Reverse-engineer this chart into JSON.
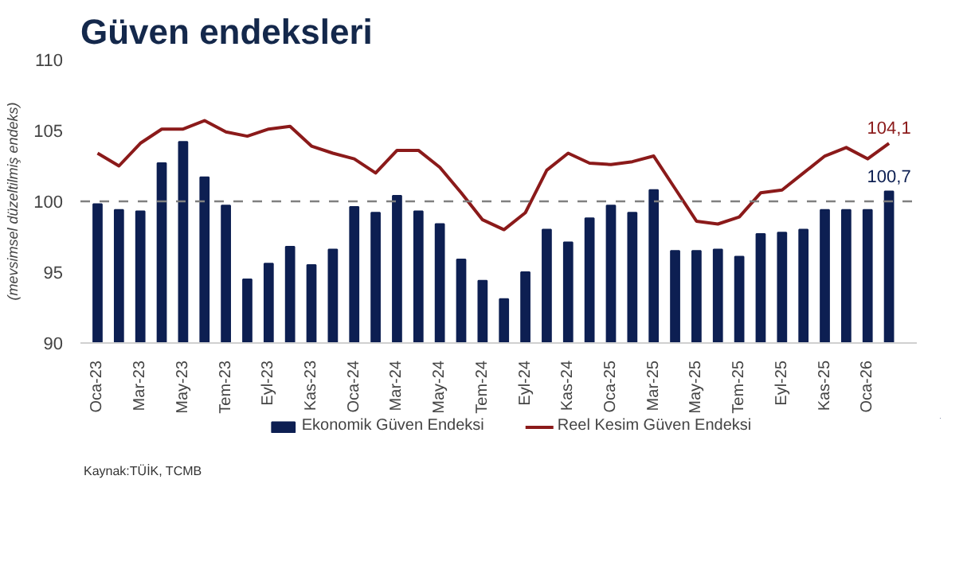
{
  "chart_data": {
    "type": "bar",
    "title": "Güven endeksleri",
    "ylabel": "(mevsimsel düzeltilmiş endeks)",
    "categories": [
      "Oca-23",
      null,
      "Mar-23",
      null,
      "May-23",
      null,
      "Tem-23",
      null,
      "Eyl-23",
      null,
      "Kas-23",
      null,
      "Oca-24",
      null,
      "Mar-24",
      null,
      "May-24",
      null,
      "Tem-24",
      null,
      "Eyl-24",
      null,
      "Kas-24",
      null,
      "Oca-25",
      null,
      "Mar-25",
      null,
      "May-25",
      null,
      "Tem-25",
      null,
      "Eyl-25",
      null,
      "Kas-25",
      null,
      "Oca-26",
      null
    ],
    "series": [
      {
        "name": "Ekonomik Güven Endeksi",
        "color": "#0d1f52",
        "values": [
          99.8,
          99.4,
          99.3,
          102.7,
          104.2,
          101.7,
          99.7,
          94.5,
          95.6,
          96.8,
          95.5,
          96.6,
          99.6,
          99.2,
          100.4,
          99.3,
          98.4,
          95.9,
          94.4,
          93.1,
          95.0,
          98.0,
          97.1,
          98.8,
          99.7,
          99.2,
          100.8,
          96.5,
          96.5,
          96.6,
          96.1,
          97.7,
          97.8,
          98.0,
          99.4,
          99.4,
          99.4,
          100.7
        ],
        "value_labels": [
          null,
          null,
          null,
          null,
          null,
          null,
          null,
          null,
          null,
          null,
          null,
          null,
          null,
          null,
          null,
          null,
          null,
          null,
          null,
          null,
          null,
          null,
          null,
          null,
          null,
          null,
          null,
          null,
          null,
          null,
          null,
          null,
          null,
          null,
          null,
          null,
          null,
          "100,7"
        ]
      },
      {
        "name": "Reel Kesim Güven Endeksi",
        "type": "line",
        "color": "#8b1a1a",
        "values": [
          103.4,
          102.5,
          104.1,
          105.1,
          105.1,
          105.7,
          104.9,
          104.6,
          105.1,
          105.3,
          103.9,
          103.4,
          103.0,
          102.0,
          103.6,
          103.6,
          102.4,
          100.6,
          98.7,
          98.0,
          99.2,
          102.2,
          103.4,
          102.7,
          102.6,
          102.8,
          103.2,
          100.9,
          98.6,
          98.4,
          98.9,
          100.6,
          100.8,
          102.0,
          103.2,
          103.8,
          103.0,
          104.1
        ],
        "value_labels": [
          null,
          null,
          null,
          null,
          null,
          null,
          null,
          null,
          null,
          null,
          null,
          null,
          null,
          null,
          null,
          null,
          null,
          null,
          null,
          null,
          null,
          null,
          null,
          null,
          null,
          null,
          null,
          null,
          null,
          null,
          null,
          null,
          null,
          null,
          null,
          null,
          null,
          "104,1"
        ]
      }
    ],
    "ylim": [
      90,
      110
    ],
    "yticks": [
      90,
      95,
      100,
      105,
      110
    ],
    "ref_lines": [
      {
        "axis": "y",
        "value": 100,
        "color": "#808080",
        "line_style": "dashed"
      }
    ],
    "grid": false,
    "legend": "bottom",
    "marker": "none",
    "line_style": "solid",
    "annotations": [
      "Kaynak:TÜİK, TCMB"
    ]
  }
}
